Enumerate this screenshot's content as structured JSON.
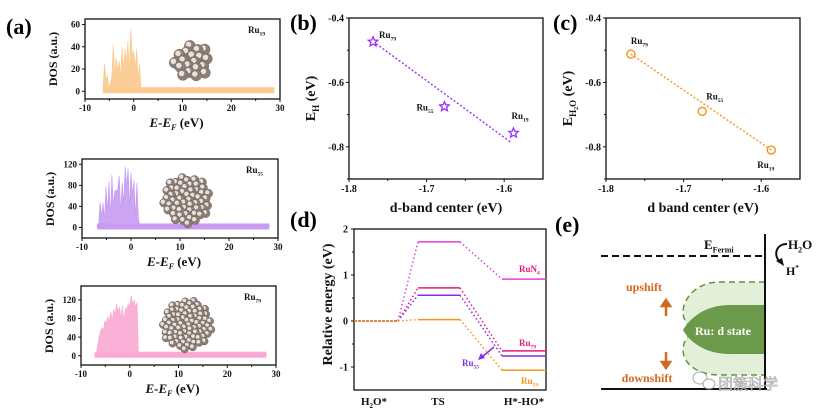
{
  "figure": {
    "panel_labels": [
      "(a)",
      "(b)",
      "(c)",
      "(d)",
      "(e)"
    ],
    "watermark": "团簇科学"
  },
  "chart_data": [
    {
      "id": "a1",
      "type": "area",
      "panel": "(a)",
      "title": "",
      "xlabel": "E-E_F (eV)",
      "ylabel": "DOS (a.u.)",
      "xlim": [
        -10,
        30
      ],
      "ylim": [
        -7,
        65
      ],
      "xticks": [
        -10,
        0,
        10,
        20,
        30
      ],
      "yticks": [
        0,
        20,
        40,
        60
      ],
      "annotation": {
        "base": "Ru",
        "sub": "19"
      },
      "color": "#fbc98e",
      "x": [
        -6.3,
        -6.0,
        -5.7,
        -5.4,
        -5.1,
        -4.8,
        -4.5,
        -4.2,
        -3.9,
        -3.6,
        -3.3,
        -3.0,
        -2.7,
        -2.4,
        -2.1,
        -1.8,
        -1.5,
        -1.2,
        -0.9,
        -0.6,
        -0.3,
        0.0,
        0.3,
        0.6,
        0.9,
        1.2,
        1.5,
        1.7,
        28.8
      ],
      "y": [
        3,
        25,
        10,
        14,
        2,
        8,
        12,
        42,
        15,
        30,
        18,
        28,
        12,
        40,
        20,
        38,
        25,
        45,
        18,
        57,
        30,
        37,
        20,
        38,
        10,
        25,
        1,
        0,
        0
      ]
    },
    {
      "id": "a2",
      "type": "area",
      "panel": "(a)",
      "title": "",
      "xlabel": "E-E_F (eV)",
      "ylabel": "DOS (a.u.)",
      "xlim": [
        -10,
        30
      ],
      "ylim": [
        -20,
        130
      ],
      "xticks": [
        -10,
        0,
        10,
        20,
        30
      ],
      "yticks": [
        0,
        40,
        80,
        120
      ],
      "annotation": {
        "base": "Ru",
        "sub": "55"
      },
      "color": "#c79bf2",
      "x": [
        -6.9,
        -6.6,
        -6.3,
        -6.0,
        -5.7,
        -5.4,
        -5.1,
        -4.8,
        -4.5,
        -4.2,
        -3.9,
        -3.6,
        -3.3,
        -3.0,
        -2.7,
        -2.4,
        -2.1,
        -1.8,
        -1.5,
        -1.2,
        -0.9,
        -0.6,
        -0.3,
        0.0,
        0.3,
        0.6,
        0.9,
        1.2,
        1.5,
        1.8,
        2.0,
        28.2
      ],
      "y": [
        5,
        5,
        48,
        20,
        47,
        15,
        78,
        30,
        88,
        20,
        100,
        40,
        70,
        70,
        72,
        98,
        30,
        85,
        45,
        115,
        80,
        112,
        40,
        105,
        60,
        90,
        20,
        85,
        20,
        0,
        0,
        0
      ]
    },
    {
      "id": "a3",
      "type": "area",
      "panel": "(a)",
      "title": "",
      "xlabel": "E-E_F (eV)",
      "ylabel": "DOS (a.u.)",
      "xlim": [
        -10,
        30
      ],
      "ylim": [
        -20,
        150
      ],
      "xticks": [
        -10,
        0,
        10,
        20,
        30
      ],
      "yticks": [
        0,
        40,
        80,
        120
      ],
      "annotation": {
        "base": "Ru",
        "sub": "79"
      },
      "color": "#f9a8d4",
      "x": [
        -7.2,
        -6.9,
        -6.6,
        -6.3,
        -6.0,
        -5.7,
        -5.4,
        -5.1,
        -4.8,
        -4.5,
        -4.2,
        -3.9,
        -3.6,
        -3.3,
        -3.0,
        -2.7,
        -2.4,
        -2.1,
        -1.8,
        -1.5,
        -1.2,
        -0.9,
        -0.6,
        -0.3,
        0.0,
        0.3,
        0.6,
        0.9,
        1.2,
        1.5,
        1.8,
        2.0,
        28.0
      ],
      "y": [
        2,
        2,
        20,
        40,
        52,
        60,
        55,
        75,
        70,
        85,
        70,
        95,
        75,
        100,
        88,
        112,
        95,
        105,
        80,
        108,
        72,
        102,
        100,
        112,
        105,
        130,
        110,
        120,
        105,
        115,
        0,
        0,
        0
      ]
    },
    {
      "id": "b",
      "type": "scatter",
      "panel": "(b)",
      "title": "",
      "xlabel": "d-band center (eV)",
      "ylabel": "E_H (eV)",
      "xlim": [
        -1.8,
        -1.55
      ],
      "ylim": [
        -0.9,
        -0.4
      ],
      "xticks": [
        -1.8,
        -1.7,
        -1.6
      ],
      "yticks": [
        -0.4,
        -0.6,
        -0.8
      ],
      "marker": "star",
      "color": "#9b30ff",
      "points": [
        {
          "label": "Ru79",
          "base": "Ru",
          "sub": "79",
          "x": -1.769,
          "y": -0.474
        },
        {
          "label": "Ru55",
          "base": "Ru",
          "sub": "55",
          "x": -1.677,
          "y": -0.675
        },
        {
          "label": "Ru19",
          "base": "Ru",
          "sub": "19",
          "x": -1.588,
          "y": -0.757
        }
      ],
      "fit_line": {
        "x": [
          -1.765,
          -1.592
        ],
        "y": [
          -0.48,
          -0.785
        ]
      }
    },
    {
      "id": "c",
      "type": "scatter",
      "panel": "(c)",
      "title": "",
      "xlabel": "d band center (eV)",
      "ylabel": "E_H2O (eV)",
      "xlim": [
        -1.8,
        -1.55
      ],
      "ylim": [
        -0.9,
        -0.4
      ],
      "xticks": [
        -1.8,
        -1.7,
        -1.6
      ],
      "yticks": [
        -0.4,
        -0.6,
        -0.8
      ],
      "marker": "circle",
      "color": "#f7941d",
      "points": [
        {
          "label": "Ru79",
          "base": "Ru",
          "sub": "79",
          "x": -1.768,
          "y": -0.512
        },
        {
          "label": "Ru55",
          "base": "Ru",
          "sub": "55",
          "x": -1.676,
          "y": -0.69
        },
        {
          "label": "Ru19",
          "base": "Ru",
          "sub": "19",
          "x": -1.587,
          "y": -0.81
        }
      ],
      "fit_line": {
        "x": [
          -1.768,
          -1.587
        ],
        "y": [
          -0.512,
          -0.81
        ]
      }
    },
    {
      "id": "d",
      "type": "line",
      "panel": "(d)",
      "title": "",
      "xlabel": "",
      "ylabel": "Relative energy (eV)",
      "categories": [
        "H2O*",
        "TS",
        "H*-HO*"
      ],
      "ylim": [
        -1.5,
        2
      ],
      "yticks": [
        2,
        1,
        0,
        -1
      ],
      "series": [
        {
          "name": "RuN4",
          "base": "RuN",
          "sub": "4",
          "color": "#e040e0",
          "label_color": "#e8177a",
          "values": [
            0,
            1.72,
            0.91
          ]
        },
        {
          "name": "Ru79",
          "base": "Ru",
          "sub": "79",
          "color": "#e8177a",
          "label_color": "#e8177a",
          "values": [
            0,
            0.72,
            -0.65
          ]
        },
        {
          "name": "Ru55",
          "base": "Ru",
          "sub": "55",
          "color": "#8a2be2",
          "label_color": "#8a2be2",
          "values": [
            0,
            0.56,
            -0.76
          ]
        },
        {
          "name": "Ru19",
          "base": "Ru",
          "sub": "19",
          "color": "#f7941d",
          "label_color": "#f7941d",
          "values": [
            0,
            0.03,
            -1.07
          ]
        }
      ]
    }
  ],
  "schematic": {
    "fermi_label": {
      "base": "E",
      "sub": "Fermi"
    },
    "reactant": {
      "base": "H",
      "sub": "2",
      "tail": "O"
    },
    "product": {
      "base": "H",
      "sup": "*"
    },
    "upshift": "upshift",
    "downshift": "downshift",
    "state_label": "Ru: d state",
    "colors": {
      "light_green": "#e3efd9",
      "dark_green": "#6a9a4a",
      "dash_green": "#5a9a3a",
      "shift_text": "#d2691e"
    }
  }
}
